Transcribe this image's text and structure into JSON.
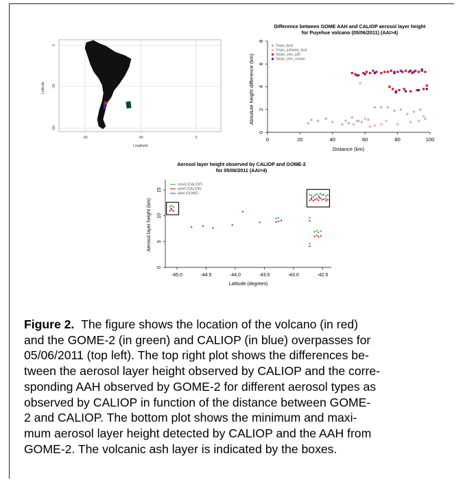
{
  "map": {
    "ylabel": "Latitude",
    "xlabel": "Longitude",
    "xticks": [
      "-90",
      "-45",
      "0"
    ],
    "yticks": [
      "0",
      "-30",
      "-60"
    ],
    "colors": {
      "volcano": "#e2141c",
      "gome2": "#0b4a2a",
      "caliop": "#1a2bd8"
    }
  },
  "chart_data": [
    {
      "type": "scatter",
      "title": "Difference between GOME AAH and CALIOP aerosol layer height",
      "subtitle": "for Puyehue volcano (05/06/2011) (AAI>4)",
      "xlabel": "Distance (km)",
      "ylabel": "Absolute height difference (km)",
      "xlim": [
        0,
        100
      ],
      "ylim": [
        0,
        8
      ],
      "xticks": [
        "0",
        "20",
        "40",
        "60",
        "80",
        "100"
      ],
      "yticks": [
        "0",
        "2",
        "4",
        "6",
        "8"
      ],
      "legend_position": "top-left",
      "series": [
        {
          "name": "Tropo_dust",
          "color": "#b9b9b9",
          "x": [
            25,
            27,
            31,
            36,
            40,
            46,
            50,
            52,
            56,
            58,
            62,
            66,
            70,
            74,
            78,
            82,
            86,
            90,
            94,
            97
          ],
          "y": [
            0.8,
            1.1,
            1.0,
            1.2,
            0.9,
            0.7,
            0.8,
            1.3,
            1.0,
            0.9,
            1.1,
            2.2,
            2.2,
            2.2,
            1.9,
            2.0,
            1.6,
            1.8,
            2.0,
            1.2
          ]
        },
        {
          "name": "Tropo_polluted_dust",
          "color": "#f4b0b8",
          "x": [
            48,
            53,
            55,
            57,
            60,
            63,
            66,
            70,
            73,
            80,
            88,
            93,
            96
          ],
          "y": [
            1.0,
            0.7,
            1.0,
            4.3,
            1.2,
            0.5,
            0.6,
            0.7,
            1.0,
            0.7,
            0.9,
            1.0,
            1.4
          ]
        },
        {
          "name": "Strato_volc_ash",
          "color": "#e2141c",
          "x": [
            52,
            54,
            56,
            59,
            61,
            63,
            65,
            67,
            70,
            72,
            74,
            76,
            78,
            80,
            82,
            85,
            87,
            89,
            91,
            93,
            95,
            97,
            75,
            77,
            79,
            81,
            84,
            88,
            92,
            96,
            98
          ],
          "y": [
            5.2,
            5.1,
            5.0,
            5.2,
            5.3,
            5.2,
            5.4,
            5.3,
            5.2,
            5.3,
            5.3,
            5.4,
            5.3,
            5.3,
            5.4,
            5.4,
            5.3,
            5.2,
            5.4,
            5.3,
            5.4,
            5.3,
            4.0,
            3.8,
            3.6,
            3.7,
            3.8,
            3.6,
            3.7,
            3.8,
            4.1
          ]
        },
        {
          "name": "Strato_elev_smoke",
          "color": "#1a2bd8",
          "x": [
            55,
            60,
            66,
            78,
            83,
            88,
            90,
            95,
            79,
            85,
            93,
            98
          ],
          "y": [
            5.0,
            5.1,
            5.2,
            5.2,
            5.3,
            5.4,
            5.3,
            5.5,
            3.5,
            3.6,
            3.7,
            3.8
          ]
        }
      ]
    },
    {
      "type": "scatter",
      "title": "Aerosol layer height observed by CALIOP and GOME-2",
      "subtitle": "for 05/06/2011 (AAI>4)",
      "xlabel": "Latitude (degrees)",
      "ylabel": "Aerosol layer height (km)",
      "xlim": [
        -45.2,
        -42.35
      ],
      "ylim": [
        0,
        17
      ],
      "xticks": [
        "-45.0",
        "-44.5",
        "-44.0",
        "-43.5",
        "-43.0",
        "-42.5"
      ],
      "xtick_values": [
        -45.0,
        -44.5,
        -44.0,
        -43.5,
        -43.0,
        -42.5
      ],
      "yticks": [
        "0",
        "5",
        "10",
        "15"
      ],
      "legend_position": "top-left",
      "boxes": [
        {
          "x0": -45.18,
          "x1": -44.97,
          "y0": 10.2,
          "y1": 12.6
        },
        {
          "x0": -42.77,
          "x1": -42.38,
          "y0": 11.7,
          "y1": 15.1
        }
      ],
      "series": [
        {
          "name": "maxH (CALIOP)",
          "color": "#2e9e3a",
          "x": [
            -45.12,
            -45.09,
            -45.06,
            -43.3,
            -43.26,
            -42.72,
            -42.69,
            -42.66,
            -42.63,
            -42.6,
            -42.57,
            -42.54,
            -42.51,
            -42.48,
            -42.44,
            -42.41,
            -42.72,
            -42.64,
            -42.6,
            -42.57,
            -42.53,
            -42.72
          ],
          "y": [
            11.8,
            12.0,
            11.7,
            9.5,
            9.6,
            14.1,
            13.9,
            13.7,
            14.0,
            14.2,
            13.9,
            14.3,
            14.0,
            14.1,
            13.8,
            14.0,
            9.6,
            6.9,
            7.1,
            6.8,
            7.0,
            4.6
          ]
        },
        {
          "name": "minH (CALIOP)",
          "color": "#e2141c",
          "x": [
            -45.12,
            -45.09,
            -45.06,
            -43.3,
            -43.26,
            -42.72,
            -42.69,
            -42.66,
            -42.63,
            -42.6,
            -42.57,
            -42.54,
            -42.51,
            -42.48,
            -42.44,
            -42.41,
            -42.72,
            -42.64,
            -42.6,
            -42.57,
            -42.53,
            -42.72
          ],
          "y": [
            11.0,
            11.2,
            10.9,
            8.8,
            8.9,
            13.0,
            13.2,
            12.9,
            13.1,
            13.3,
            13.0,
            13.4,
            13.1,
            13.2,
            12.9,
            13.1,
            9.0,
            6.0,
            6.2,
            5.9,
            6.1,
            4.1
          ]
        },
        {
          "name": "AAH (GOME)",
          "color": "#3a3ad8",
          "x": [
            -45.1,
            -44.75,
            -44.55,
            -44.38,
            -44.05,
            -43.87,
            -43.58,
            -43.21,
            -42.69,
            -42.56,
            -42.44
          ],
          "y": [
            11.4,
            7.8,
            8.0,
            7.6,
            8.2,
            10.8,
            8.7,
            9.1,
            13.4,
            13.6,
            13.3
          ]
        }
      ]
    }
  ],
  "caption": {
    "label": "Figure 2.",
    "lines": [
      "The figure shows the location of the volcano (in red)",
      "and the GOME-2 (in green) and CALIOP (in blue) overpasses for",
      "05/06/2011 (top left). The top right plot shows the differences be-",
      "tween the aerosol layer height observed by CALIOP and the corre-",
      "sponding AAH observed by GOME-2 for different aerosol types as",
      "observed by CALIOP in function of the distance between GOME-",
      "2 and CALIOP. The bottom plot shows the minimum and maxi-",
      "mum aerosol layer height detected by CALIOP and the AAH from",
      "GOME-2. The volcanic ash layer is indicated by the boxes."
    ]
  }
}
